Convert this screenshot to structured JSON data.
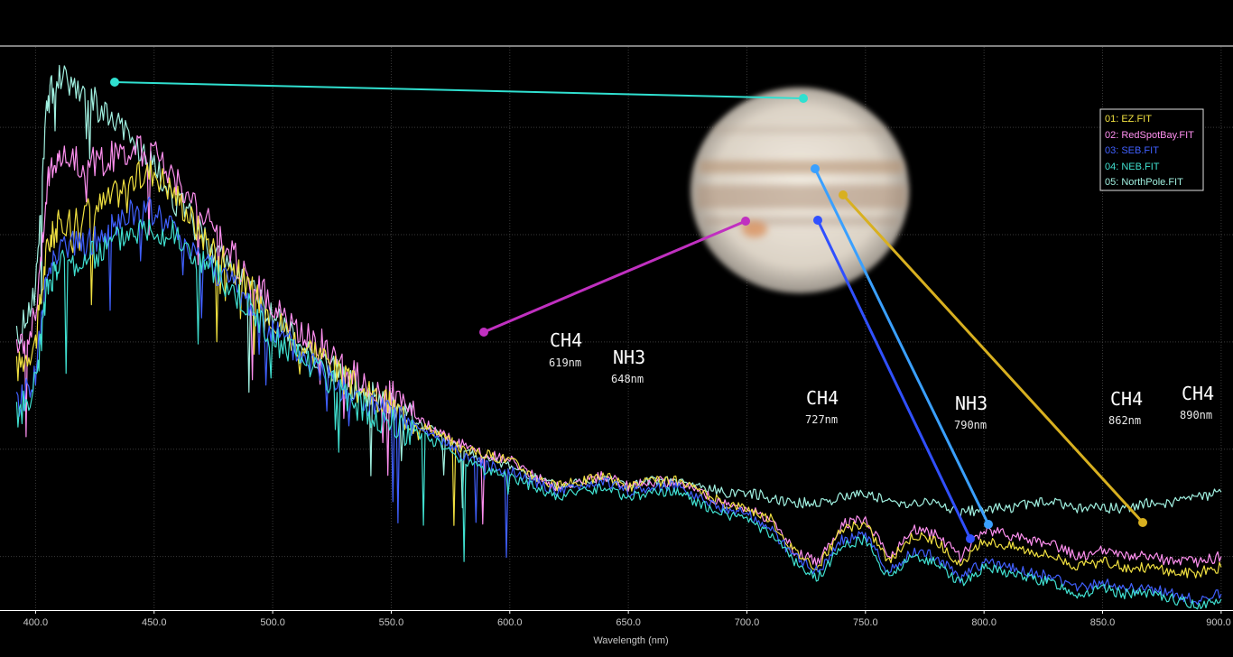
{
  "chart_data": {
    "type": "line",
    "title": "",
    "xlabel": "Wavelength (nm)",
    "ylabel": "",
    "xlim": [
      385,
      905
    ],
    "ylim": [
      0,
      1.05
    ],
    "x_ticks": [
      "400.0",
      "450.0",
      "500.0",
      "550.0",
      "600.0",
      "650.0",
      "700.0",
      "750.0",
      "800.0",
      "850.0",
      "900.0"
    ],
    "grid": true,
    "legend_position": "top-right",
    "series": [
      {
        "name": "01: EZ.FIT",
        "color": "#f0e040",
        "x": [
          392,
          400,
          405,
          410,
          420,
          430,
          440,
          450,
          460,
          470,
          480,
          490,
          500,
          510,
          520,
          530,
          540,
          550,
          560,
          570,
          580,
          590,
          600,
          610,
          620,
          630,
          640,
          650,
          660,
          670,
          680,
          690,
          700,
          710,
          720,
          730,
          740,
          750,
          760,
          770,
          780,
          790,
          800,
          810,
          820,
          830,
          840,
          850,
          860,
          870,
          880,
          890,
          900
        ],
        "y": [
          0.45,
          0.5,
          0.68,
          0.72,
          0.74,
          0.76,
          0.8,
          0.82,
          0.77,
          0.7,
          0.66,
          0.6,
          0.55,
          0.5,
          0.48,
          0.43,
          0.4,
          0.38,
          0.35,
          0.33,
          0.3,
          0.29,
          0.28,
          0.25,
          0.23,
          0.24,
          0.25,
          0.23,
          0.24,
          0.24,
          0.22,
          0.2,
          0.19,
          0.17,
          0.11,
          0.08,
          0.15,
          0.16,
          0.09,
          0.14,
          0.13,
          0.08,
          0.13,
          0.12,
          0.11,
          0.1,
          0.08,
          0.09,
          0.08,
          0.08,
          0.07,
          0.07,
          0.08
        ]
      },
      {
        "name": "02: RedSpotBay.FIT",
        "color": "#ff90f0",
        "x": [
          392,
          400,
          405,
          410,
          420,
          430,
          440,
          450,
          460,
          470,
          480,
          490,
          500,
          510,
          520,
          530,
          540,
          550,
          560,
          570,
          580,
          590,
          600,
          610,
          620,
          630,
          640,
          650,
          660,
          670,
          680,
          690,
          700,
          710,
          720,
          730,
          740,
          750,
          760,
          770,
          780,
          790,
          800,
          810,
          820,
          830,
          840,
          850,
          860,
          870,
          880,
          890,
          900
        ],
        "y": [
          0.48,
          0.55,
          0.8,
          0.85,
          0.83,
          0.84,
          0.86,
          0.85,
          0.8,
          0.74,
          0.68,
          0.62,
          0.57,
          0.52,
          0.5,
          0.45,
          0.42,
          0.4,
          0.36,
          0.33,
          0.31,
          0.29,
          0.28,
          0.25,
          0.23,
          0.24,
          0.25,
          0.23,
          0.24,
          0.24,
          0.22,
          0.2,
          0.19,
          0.17,
          0.11,
          0.09,
          0.16,
          0.17,
          0.1,
          0.15,
          0.14,
          0.1,
          0.15,
          0.14,
          0.13,
          0.12,
          0.1,
          0.11,
          0.1,
          0.1,
          0.09,
          0.09,
          0.1
        ]
      },
      {
        "name": "03: SEB.FIT",
        "color": "#4060ff",
        "x": [
          392,
          400,
          405,
          410,
          420,
          430,
          440,
          450,
          460,
          470,
          480,
          490,
          500,
          510,
          520,
          530,
          540,
          550,
          560,
          570,
          580,
          590,
          600,
          610,
          620,
          630,
          640,
          650,
          660,
          670,
          680,
          690,
          700,
          710,
          720,
          730,
          740,
          750,
          760,
          770,
          780,
          790,
          800,
          810,
          820,
          830,
          840,
          850,
          860,
          870,
          880,
          890,
          900
        ],
        "y": [
          0.38,
          0.44,
          0.63,
          0.68,
          0.68,
          0.7,
          0.74,
          0.74,
          0.7,
          0.66,
          0.62,
          0.57,
          0.52,
          0.48,
          0.45,
          0.41,
          0.38,
          0.36,
          0.34,
          0.32,
          0.29,
          0.27,
          0.26,
          0.24,
          0.22,
          0.23,
          0.24,
          0.22,
          0.23,
          0.23,
          0.21,
          0.19,
          0.18,
          0.15,
          0.1,
          0.07,
          0.13,
          0.14,
          0.07,
          0.11,
          0.1,
          0.06,
          0.09,
          0.08,
          0.07,
          0.06,
          0.04,
          0.05,
          0.04,
          0.04,
          0.03,
          0.02,
          0.03
        ]
      },
      {
        "name": "04: NEB.FIT",
        "color": "#40e0d0",
        "x": [
          392,
          400,
          405,
          410,
          420,
          430,
          440,
          450,
          460,
          470,
          480,
          490,
          500,
          510,
          520,
          530,
          540,
          550,
          560,
          570,
          580,
          590,
          600,
          610,
          620,
          630,
          640,
          650,
          660,
          670,
          680,
          690,
          700,
          710,
          720,
          730,
          740,
          750,
          760,
          770,
          780,
          790,
          800,
          810,
          820,
          830,
          840,
          850,
          860,
          870,
          880,
          890,
          900
        ],
        "y": [
          0.36,
          0.42,
          0.6,
          0.65,
          0.65,
          0.68,
          0.71,
          0.72,
          0.69,
          0.65,
          0.61,
          0.56,
          0.51,
          0.47,
          0.44,
          0.4,
          0.37,
          0.35,
          0.33,
          0.31,
          0.28,
          0.26,
          0.25,
          0.23,
          0.21,
          0.22,
          0.23,
          0.21,
          0.22,
          0.22,
          0.2,
          0.18,
          0.17,
          0.14,
          0.09,
          0.06,
          0.12,
          0.13,
          0.06,
          0.1,
          0.09,
          0.05,
          0.08,
          0.07,
          0.06,
          0.05,
          0.03,
          0.04,
          0.03,
          0.03,
          0.02,
          0.01,
          0.02
        ]
      },
      {
        "name": "05: NorthPole.FIT",
        "color": "#a0f0e0",
        "x": [
          392,
          400,
          405,
          410,
          420,
          430,
          440,
          450,
          460,
          470,
          480,
          490,
          500,
          510,
          520,
          530,
          540,
          550,
          560,
          570,
          580,
          590,
          600,
          610,
          620,
          630,
          640,
          650,
          660,
          670,
          680,
          690,
          700,
          710,
          720,
          730,
          740,
          750,
          760,
          770,
          780,
          790,
          800,
          810,
          820,
          830,
          840,
          850,
          860,
          870,
          880,
          890,
          900
        ],
        "y": [
          0.5,
          0.6,
          0.95,
          1.0,
          0.97,
          0.92,
          0.88,
          0.82,
          0.76,
          0.7,
          0.65,
          0.6,
          0.55,
          0.5,
          0.47,
          0.43,
          0.4,
          0.38,
          0.35,
          0.33,
          0.3,
          0.28,
          0.27,
          0.25,
          0.23,
          0.24,
          0.25,
          0.23,
          0.24,
          0.24,
          0.23,
          0.22,
          0.22,
          0.21,
          0.2,
          0.2,
          0.21,
          0.22,
          0.2,
          0.2,
          0.2,
          0.18,
          0.19,
          0.19,
          0.2,
          0.2,
          0.19,
          0.19,
          0.19,
          0.2,
          0.2,
          0.21,
          0.22
        ]
      }
    ],
    "annotations": [
      {
        "name": "CH4",
        "wavelength": "619nm"
      },
      {
        "name": "NH3",
        "wavelength": "648nm"
      },
      {
        "name": "CH4",
        "wavelength": "727nm"
      },
      {
        "name": "NH3",
        "wavelength": "790nm"
      },
      {
        "name": "CH4",
        "wavelength": "862nm"
      },
      {
        "name": "CH4",
        "wavelength": "890nm"
      }
    ]
  },
  "colors": {
    "background": "#000000",
    "axis": "#ffffff",
    "grid": "#3a3a3a",
    "tick_text": "#c8c8c8",
    "pointer_north_pole": "#30e0d0",
    "pointer_red_spot_bay": "#c030c0",
    "pointer_seb": "#3050ff",
    "pointer_neb": "#3aa0ff",
    "pointer_ez": "#d8b020"
  },
  "inset": {
    "type": "planet-image",
    "subject": "jupiter"
  }
}
